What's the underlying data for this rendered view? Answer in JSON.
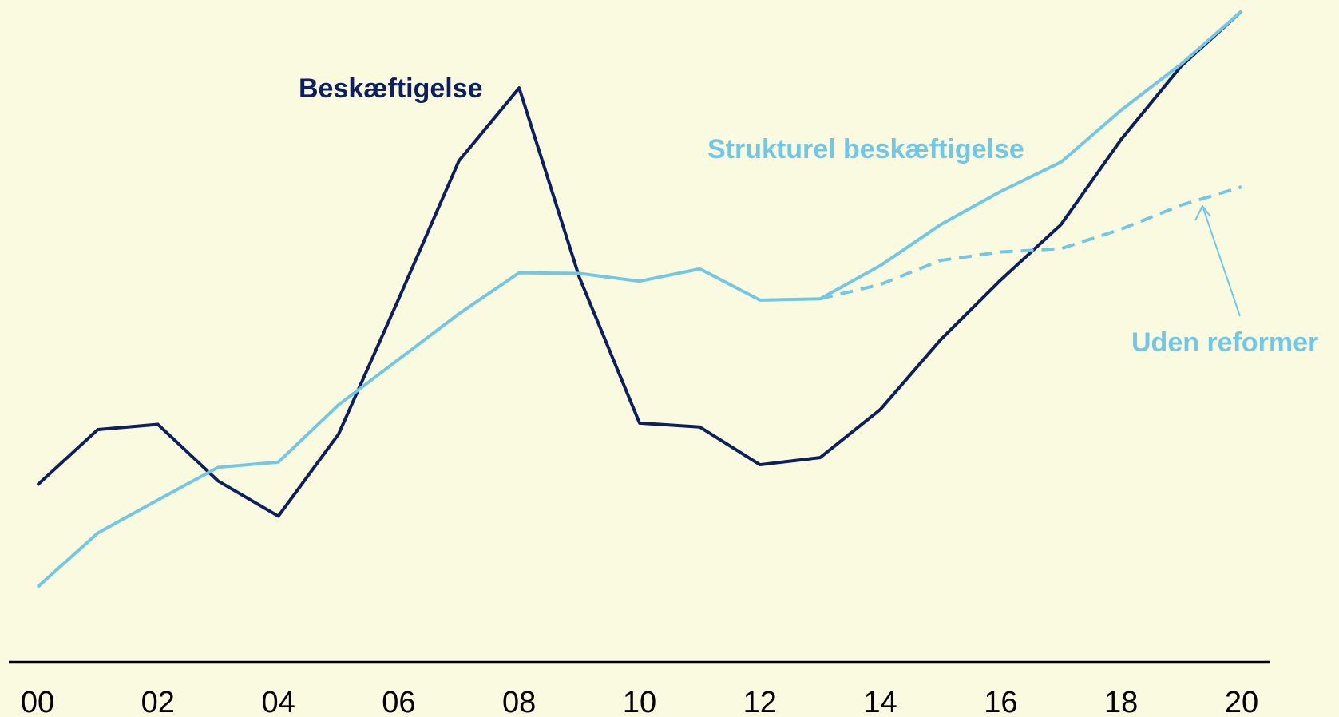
{
  "chart_data": {
    "type": "line",
    "categories": [
      "00",
      null,
      "02",
      null,
      "04",
      null,
      "06",
      null,
      "08",
      null,
      "10",
      null,
      "12",
      null,
      "14",
      null,
      "16",
      null,
      "18",
      null,
      "20"
    ],
    "ylim": [
      0,
      100
    ],
    "series": [
      {
        "name": "Beskæftigelse",
        "color": "#0d1f5c",
        "style": "solid",
        "values": [
          27.2,
          35.7,
          36.5,
          27.8,
          22.4,
          35.0,
          55.8,
          77.0,
          88.2,
          59.1,
          36.7,
          36.1,
          30.3,
          31.4,
          38.8,
          49.5,
          58.7,
          67.2,
          80.3,
          91.6,
          100
        ]
      },
      {
        "name": "Strukturel beskæftigelse",
        "color": "#74c6e5",
        "style": "solid",
        "values": [
          11.5,
          19.8,
          24.9,
          29.9,
          30.7,
          39.5,
          46.5,
          53.5,
          59.8,
          59.7,
          58.5,
          60.4,
          55.6,
          55.8,
          60.9,
          67.2,
          72.3,
          76.8,
          84.8,
          91.9,
          100
        ]
      },
      {
        "name": "Uden reformer",
        "color": "#74c6e5",
        "style": "dashed",
        "values": [
          null,
          null,
          null,
          null,
          null,
          null,
          null,
          null,
          null,
          null,
          null,
          null,
          null,
          55.8,
          58.0,
          61.7,
          63.0,
          63.5,
          66.5,
          70.2,
          73.0
        ]
      }
    ]
  }
}
